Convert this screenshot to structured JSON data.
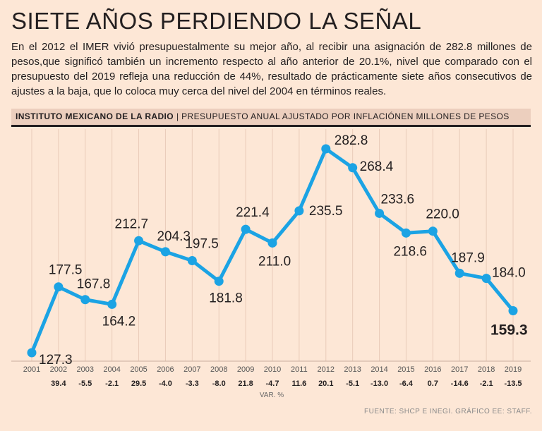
{
  "header": {
    "title": "SIETE AÑOS PERDIENDO LA SEÑAL",
    "intro": "En el 2012 el IMER vivió presupuestalmente su mejor año, al recibir una asignación de 282.8 millones de pesos,que significó también un incremento respecto al año anterior de 20.1%, nivel que comparado con el presupuesto del 2019 refleja una reducción de 44%, resultado de prácticamente siete años consecutivos de ajustes a la baja, que lo coloca muy cerca del nivel del 2004 en términos reales."
  },
  "subheader": {
    "org": "INSTITUTO MEXICANO DE LA RADIO",
    "separator": "|",
    "description": "PRESUPUESTO ANUAL AJUSTADO POR INFLACIÓNEN MILLONES DE PESOS"
  },
  "footer": {
    "var_label": "VAR. %",
    "source": "FUENTE: SHCP E INEGI. GRÁFICO EE: STAFF."
  },
  "chart_data": {
    "type": "line",
    "title": "SIETE AÑOS PERDIENDO LA SEÑAL",
    "ylabel": "Millones de pesos",
    "xlabel": "",
    "x": [
      "2001",
      "2002",
      "2003",
      "2004",
      "2005",
      "2006",
      "2007",
      "2008",
      "2009",
      "2010",
      "2011",
      "2012",
      "2013",
      "2014",
      "2015",
      "2016",
      "2017",
      "2018",
      "2019"
    ],
    "values": [
      127.3,
      177.5,
      167.8,
      164.2,
      212.7,
      204.3,
      197.5,
      181.8,
      221.4,
      211.0,
      235.5,
      282.8,
      268.4,
      233.6,
      218.6,
      220.0,
      187.9,
      184.0,
      159.3
    ],
    "labels": [
      "127.3",
      "177.5",
      "167.8",
      "164.2",
      "212.7",
      "204.3",
      "197.5",
      "181.8",
      "221.4",
      "211.0",
      "235.5",
      "282.8",
      "268.4",
      "233.6",
      "218.6",
      "220.0",
      "187.9",
      "184.0",
      "159.3"
    ],
    "var_pct": [
      "",
      "39.4",
      "-5.5",
      "-2.1",
      "29.5",
      "-4.0",
      "-3.3",
      "-8.0",
      "21.8",
      "-4.7",
      "11.6",
      "20.1",
      "-5.1",
      "-13.0",
      "-6.4",
      "0.7",
      "-14.6",
      "-2.1",
      "-13.5"
    ],
    "ylim": [
      120,
      295
    ],
    "grid": "vertical",
    "line_color": "#1ba3e4",
    "grid_color": "#e9cbb9",
    "highlight_last": true
  }
}
